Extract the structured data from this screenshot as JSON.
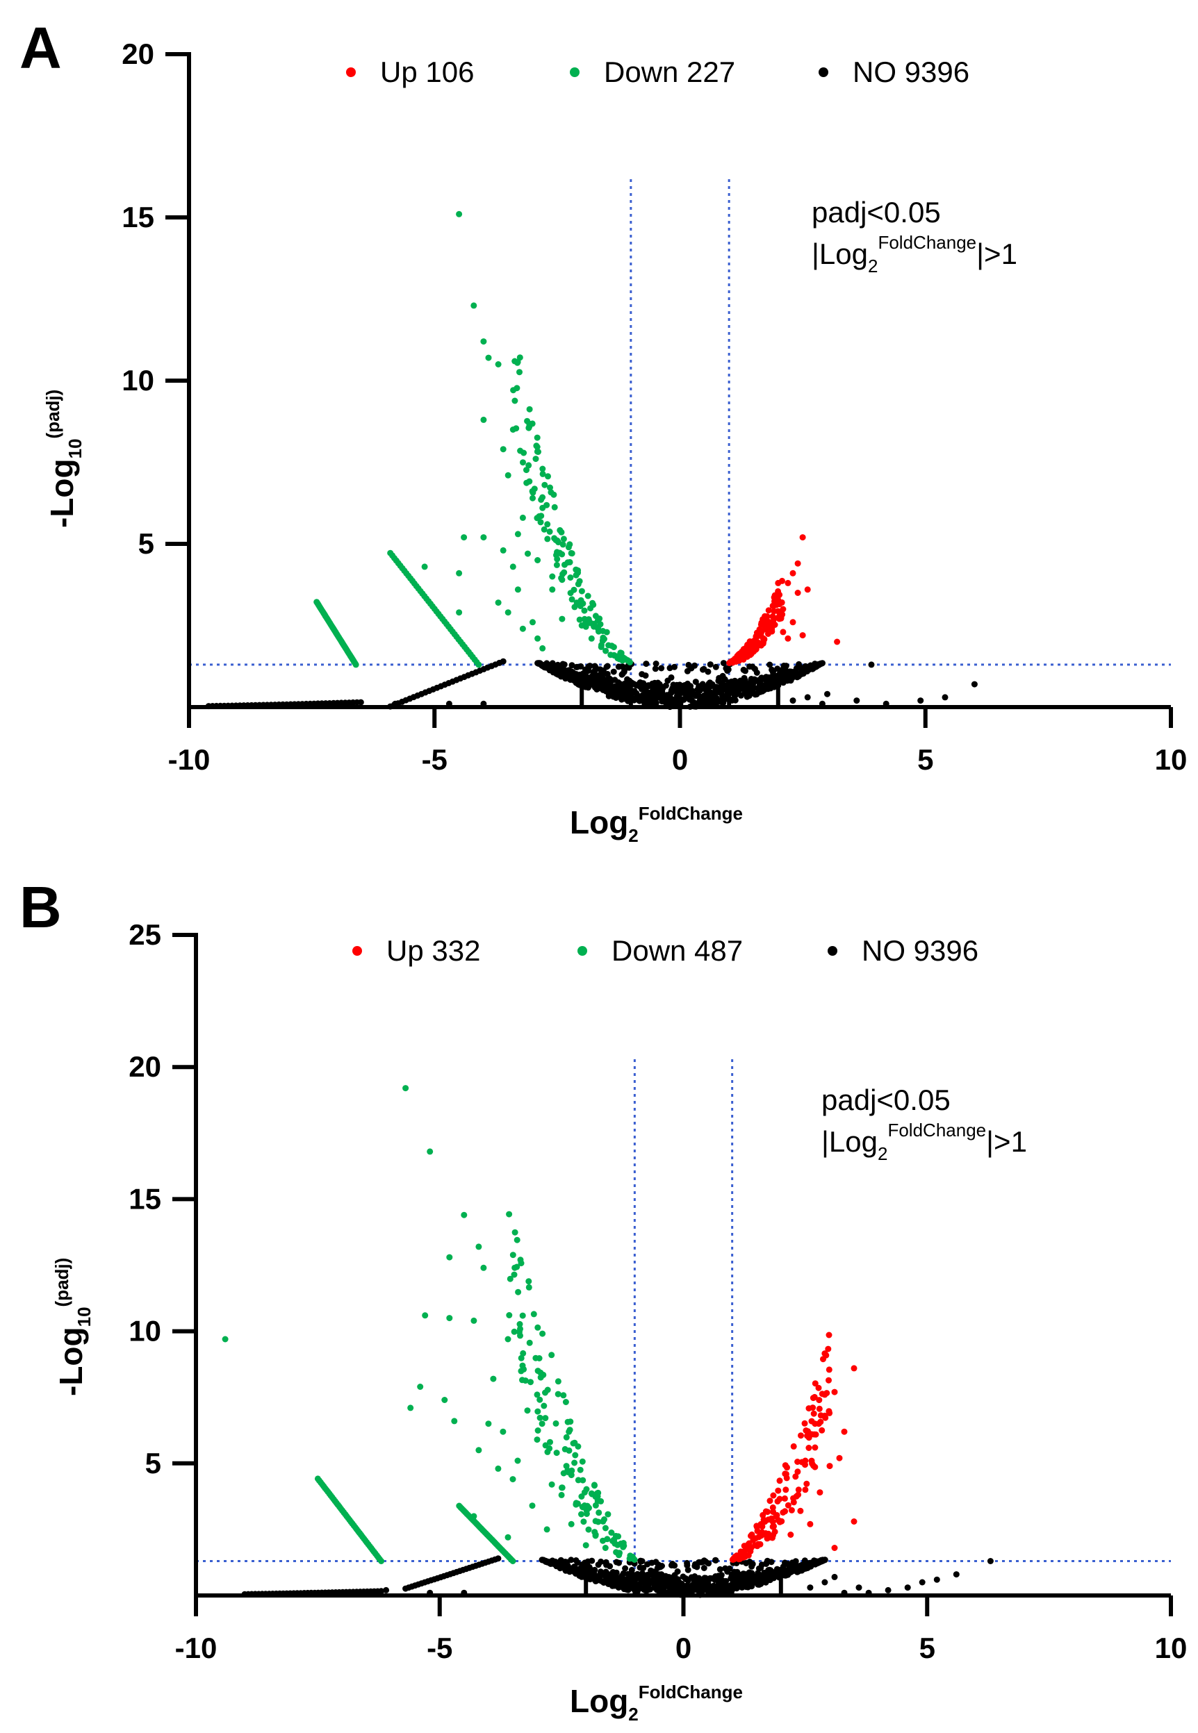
{
  "chart_data": [
    {
      "type": "scatter",
      "panel_label": "A",
      "xlim": [
        -10,
        10
      ],
      "ylim": [
        0,
        20
      ],
      "xticks": [
        "-10",
        "-5",
        "0",
        "5",
        "10"
      ],
      "yticks": [
        "20",
        "15",
        "10",
        "5"
      ],
      "xlabel": {
        "base": "Log",
        "sub": "2",
        "sup": "FoldChange"
      },
      "ylabel": {
        "base": "-Log",
        "sub": "10",
        "sup": "(padj)"
      },
      "thresholds": {
        "x": [
          -1,
          1
        ],
        "y": 1.3
      },
      "annotation": {
        "line1": "padj<0.05",
        "line2_prefix": "|Log",
        "line2_sub": "2",
        "line2_sup": "FoldChange",
        "line2_suffix": "|>1"
      },
      "legend": [
        {
          "label": "Up 106",
          "color": "#ff0000"
        },
        {
          "label": "Down 227",
          "color": "#00b050"
        },
        {
          "label": "NO 9396",
          "color": "#000000"
        }
      ],
      "series": [
        {
          "name": "Up",
          "color": "#ff0000",
          "count": 106,
          "points": [
            [
              2.5,
              5.2
            ],
            [
              2.4,
              4.4
            ],
            [
              2.3,
              4.1
            ],
            [
              2.2,
              3.8
            ],
            [
              2.4,
              3.5
            ],
            [
              2.0,
              3.4
            ],
            [
              2.1,
              3.0
            ],
            [
              1.9,
              2.6
            ],
            [
              1.7,
              2.0
            ],
            [
              2.5,
              2.2
            ],
            [
              3.2,
              2.0
            ],
            [
              2.3,
              2.6
            ],
            [
              1.8,
              2.4
            ],
            [
              2.6,
              3.6
            ],
            [
              2.0,
              3.8
            ],
            [
              1.5,
              1.7
            ],
            [
              1.6,
              1.9
            ],
            [
              2.2,
              2.1
            ],
            [
              1.4,
              1.6
            ],
            [
              2.1,
              2.3
            ]
          ],
          "curve": {
            "dir": 1,
            "k": 0.38,
            "x0": 1.0,
            "x1": 2.1,
            "scatter": 0.8
          }
        },
        {
          "name": "Down",
          "color": "#00b050",
          "count": 227,
          "points": [
            [
              -4.5,
              15.1
            ],
            [
              -4.2,
              12.3
            ],
            [
              -4.0,
              11.2
            ],
            [
              -3.9,
              10.7
            ],
            [
              -3.7,
              10.5
            ],
            [
              -4.0,
              8.8
            ],
            [
              -3.4,
              8.5
            ],
            [
              -3.6,
              7.9
            ],
            [
              -3.5,
              7.1
            ],
            [
              -3.0,
              6.4
            ],
            [
              -2.8,
              6.1
            ],
            [
              -3.2,
              5.8
            ],
            [
              -2.7,
              5.6
            ],
            [
              -3.3,
              5.3
            ],
            [
              -2.5,
              5.1
            ],
            [
              -4.4,
              5.2
            ],
            [
              -5.2,
              4.3
            ],
            [
              -4.5,
              4.1
            ],
            [
              -3.6,
              4.8
            ],
            [
              -3.4,
              4.3
            ],
            [
              -4.0,
              5.2
            ],
            [
              -3.1,
              4.7
            ],
            [
              -2.9,
              4.5
            ],
            [
              -2.6,
              4.0
            ],
            [
              -2.4,
              3.9
            ],
            [
              -2.6,
              3.6
            ],
            [
              -3.3,
              3.6
            ],
            [
              -2.2,
              3.3
            ],
            [
              -3.7,
              3.2
            ],
            [
              -4.5,
              2.9
            ],
            [
              -2.1,
              3.2
            ],
            [
              -3.2,
              2.4
            ],
            [
              -2.9,
              2.1
            ],
            [
              -2.4,
              2.7
            ],
            [
              -2.0,
              2.5
            ],
            [
              -1.6,
              1.9
            ],
            [
              -1.8,
              2.1
            ],
            [
              -2.8,
              1.8
            ],
            [
              -3.5,
              2.9
            ],
            [
              -3.0,
              2.6
            ]
          ],
          "curve": {
            "dir": -1,
            "k": 0.38,
            "x0": 1.0,
            "x1": 3.4,
            "scatter": 1.0
          }
        },
        {
          "name": "NO",
          "color": "#000000",
          "count": 9396,
          "points": [
            [
              3.9,
              1.3
            ],
            [
              6.0,
              0.7
            ],
            [
              5.4,
              0.3
            ],
            [
              4.9,
              0.2
            ],
            [
              4.2,
              0.1
            ],
            [
              3.6,
              0.2
            ],
            [
              2.6,
              0.3
            ],
            [
              2.3,
              0.2
            ],
            [
              2.9,
              0.1
            ],
            [
              3.0,
              0.4
            ],
            [
              -4.0,
              0.1
            ],
            [
              -4.7,
              0.1
            ],
            [
              -5.8,
              0.1
            ]
          ],
          "left_tail": {
            "k": 0.058,
            "x0": 6.5,
            "x1": 9.6
          },
          "mid_tail": {
            "k": 0.05,
            "x0": 3.6,
            "x1": 5.9
          }
        }
      ],
      "extra_curves": [
        {
          "color": "#00b050",
          "k": 0.058,
          "x0": 6.6,
          "x1": 7.4
        },
        {
          "color": "#00b050",
          "k": 0.05,
          "x0": 4.1,
          "x1": 5.9
        }
      ]
    },
    {
      "type": "scatter",
      "panel_label": "B",
      "xlim": [
        -10,
        10
      ],
      "ylim": [
        0,
        25
      ],
      "xticks": [
        "-10",
        "-5",
        "0",
        "5",
        "10"
      ],
      "yticks": [
        "25",
        "20",
        "15",
        "10",
        "5"
      ],
      "xlabel": {
        "base": "Log",
        "sub": "2",
        "sup": "FoldChange"
      },
      "ylabel": {
        "base": "-Log",
        "sub": "10",
        "sup": "(padj)"
      },
      "thresholds": {
        "x": [
          -1,
          1
        ],
        "y": 1.3
      },
      "annotation": {
        "line1": "padj<0.05",
        "line2_prefix": "|Log",
        "line2_sub": "2",
        "line2_sup": "FoldChange",
        "line2_suffix": "|>1"
      },
      "legend": [
        {
          "label": "Up 332",
          "color": "#ff0000"
        },
        {
          "label": "Down 487",
          "color": "#00b050"
        },
        {
          "label": "NO 9396",
          "color": "#000000"
        }
      ],
      "series": [
        {
          "name": "Up",
          "color": "#ff0000",
          "count": 332,
          "points": [
            [
              3.5,
              8.6
            ],
            [
              3.1,
              7.7
            ],
            [
              2.9,
              7.6
            ],
            [
              2.7,
              6.5
            ],
            [
              3.2,
              5.2
            ],
            [
              3.0,
              4.9
            ],
            [
              2.5,
              5.1
            ],
            [
              2.3,
              4.5
            ],
            [
              2.1,
              4.0
            ],
            [
              3.5,
              2.8
            ],
            [
              3.1,
              1.8
            ],
            [
              2.4,
              3.2
            ],
            [
              1.9,
              3.0
            ],
            [
              2.7,
              5.6
            ],
            [
              2.9,
              6.8
            ],
            [
              2.5,
              4.0
            ],
            [
              2.8,
              3.9
            ],
            [
              2.2,
              2.3
            ],
            [
              3.3,
              6.2
            ],
            [
              2.6,
              2.7
            ]
          ],
          "curve": {
            "dir": 1,
            "k": 0.38,
            "x0": 1.0,
            "x1": 3.0,
            "scatter": 1.4
          }
        },
        {
          "name": "Down",
          "color": "#00b050",
          "count": 487,
          "points": [
            [
              -5.7,
              19.2
            ],
            [
              -5.2,
              16.8
            ],
            [
              -4.5,
              14.4
            ],
            [
              -4.2,
              13.2
            ],
            [
              -4.8,
              12.8
            ],
            [
              -4.1,
              12.4
            ],
            [
              -9.4,
              9.7
            ],
            [
              -5.3,
              10.6
            ],
            [
              -4.8,
              10.5
            ],
            [
              -4.3,
              10.4
            ],
            [
              -3.6,
              9.7
            ],
            [
              -5.4,
              7.9
            ],
            [
              -4.9,
              7.4
            ],
            [
              -5.6,
              7.1
            ],
            [
              -4.7,
              6.6
            ],
            [
              -4.0,
              6.5
            ],
            [
              -4.2,
              5.5
            ],
            [
              -3.8,
              4.8
            ],
            [
              -4.3,
              3.0
            ],
            [
              -3.6,
              2.2
            ],
            [
              -3.3,
              8.7
            ],
            [
              -3.0,
              7.6
            ],
            [
              -2.9,
              6.5
            ],
            [
              -2.6,
              5.4
            ],
            [
              -2.4,
              4.9
            ],
            [
              -3.5,
              4.4
            ],
            [
              -3.1,
              3.4
            ],
            [
              -2.8,
              2.5
            ],
            [
              -2.2,
              3.5
            ],
            [
              -1.8,
              2.3
            ],
            [
              -3.0,
              5.9
            ],
            [
              -2.5,
              3.8
            ],
            [
              -3.7,
              6.2
            ],
            [
              -2.0,
              1.9
            ],
            [
              -2.7,
              4.2
            ],
            [
              -3.9,
              8.2
            ],
            [
              -3.2,
              7.0
            ],
            [
              -2.3,
              2.7
            ],
            [
              -1.6,
              1.8
            ],
            [
              -3.4,
              5.1
            ]
          ],
          "curve": {
            "dir": -1,
            "k": 0.38,
            "x0": 1.0,
            "x1": 3.6,
            "scatter": 1.8
          }
        },
        {
          "name": "NO",
          "color": "#000000",
          "count": 9396,
          "points": [
            [
              6.3,
              1.3
            ],
            [
              5.6,
              0.8
            ],
            [
              5.2,
              0.6
            ],
            [
              4.9,
              0.5
            ],
            [
              4.6,
              0.3
            ],
            [
              4.2,
              0.2
            ],
            [
              3.8,
              0.1
            ],
            [
              3.1,
              0.7
            ],
            [
              2.9,
              0.5
            ],
            [
              2.6,
              0.3
            ],
            [
              3.6,
              0.3
            ],
            [
              3.3,
              0.1
            ],
            [
              -4.5,
              0.1
            ],
            [
              -5.2,
              0.1
            ],
            [
              -6.1,
              0.2
            ]
          ],
          "left_tail": {
            "k": 0.058,
            "x0": 6.2,
            "x1": 9.0
          },
          "mid_tail": {
            "k": 0.05,
            "x0": 3.8,
            "x1": 5.7
          }
        }
      ],
      "extra_curves": [
        {
          "color": "#00b050",
          "k": 0.058,
          "x0": 6.2,
          "x1": 7.5
        },
        {
          "color": "#00b050",
          "k": 0.05,
          "x0": 3.5,
          "x1": 4.6
        }
      ]
    }
  ]
}
